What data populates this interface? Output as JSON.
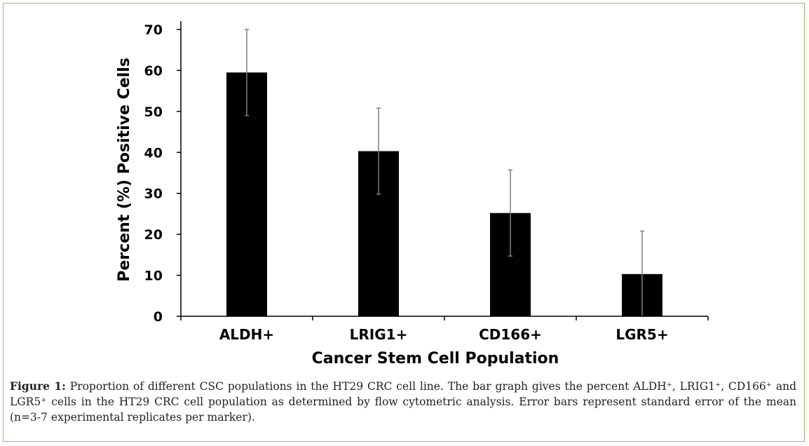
{
  "chart_data": {
    "type": "bar",
    "categories": [
      "ALDH+",
      "LRIG1+",
      "CD166+",
      "LGR5+"
    ],
    "values": [
      59.5,
      40.3,
      25.2,
      10.3
    ],
    "error": [
      10.5,
      10.5,
      10.5,
      10.5
    ],
    "xlabel": "Cancer Stem Cell Population",
    "ylabel": "Percent (%) Positive Cells",
    "ylim": [
      0,
      70
    ],
    "yticks": [
      0,
      10,
      20,
      30,
      40,
      50,
      60,
      70
    ],
    "bar_color": "#000000",
    "error_color": "#7f7f7f"
  },
  "caption": {
    "label": "Figure 1:",
    "text": "Proportion of different CSC populations in the HT29 CRC cell line. The bar graph gives the percent ALDH⁺, LRIG1⁺, CD166⁺ and LGR5⁺ cells in the HT29 CRC cell population as determined by flow cytometric analysis. Error bars represent standard error of the mean (n=3-7 experimental replicates per marker)."
  }
}
